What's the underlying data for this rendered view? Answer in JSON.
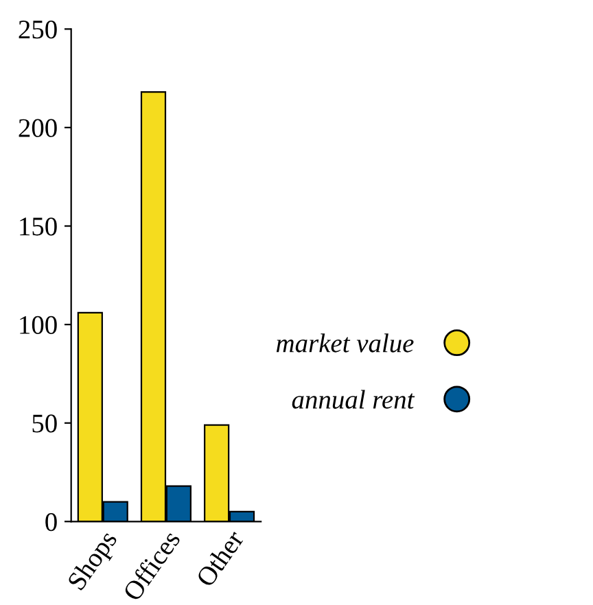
{
  "chart_data": {
    "type": "bar",
    "categories": [
      "Shops",
      "Offices",
      "Other"
    ],
    "series": [
      {
        "name": "market value",
        "color": "#f5dc1e",
        "values": [
          106,
          218,
          49
        ]
      },
      {
        "name": "annual rent",
        "color": "#005a96",
        "values": [
          10,
          18,
          5
        ]
      }
    ],
    "ylim": [
      0,
      250
    ],
    "yticks": [
      0,
      50,
      100,
      150,
      200,
      250
    ],
    "grid": false,
    "legend": "right"
  }
}
